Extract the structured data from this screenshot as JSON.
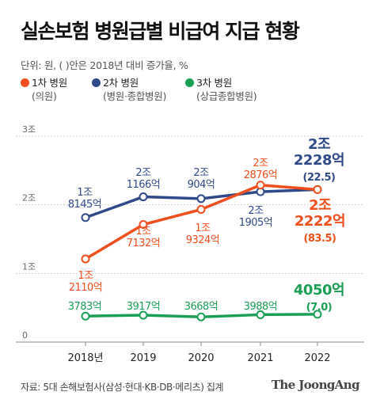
{
  "title": "실손보험 병원급별 비급여 지급 현황",
  "unit_note": "단위: 원, ( )안은 2018년 대비 증가율, %",
  "source": "자료: 5대 손해보험사(삼성·현대·KB·DB·메리츠) 집계",
  "brand": "The JoongAng",
  "chart_data": {
    "type": "line",
    "title": "실손보험 병원급별 비급여 지급 현황",
    "x": [
      "2018년",
      "2019",
      "2020",
      "2021",
      "2022"
    ],
    "y_ticks": [
      {
        "value": 0,
        "label": "0"
      },
      {
        "value": 1,
        "label": "1조"
      },
      {
        "value": 2,
        "label": "2조"
      },
      {
        "value": 3,
        "label": "3조"
      }
    ],
    "ylim": [
      0,
      3
    ],
    "grid": true,
    "legend_position": "top-left",
    "series": [
      {
        "name": "1차 병원",
        "sublabel": "(의원)",
        "color": "#f04e1c",
        "values": [
          1.211,
          1.7132,
          1.9324,
          2.2876,
          2.2222
        ],
        "labels": [
          [
            "1조",
            "2110억"
          ],
          [
            "1조",
            "7132억"
          ],
          [
            "1조",
            "9324억"
          ],
          [
            "2조",
            "2876억"
          ],
          [
            "2조",
            "2222억",
            "(83.5)"
          ]
        ]
      },
      {
        "name": "2차 병원",
        "sublabel": "(병원·종합병원)",
        "color": "#2f4a8a",
        "values": [
          1.8145,
          2.1166,
          2.0904,
          2.1905,
          2.2228
        ],
        "labels": [
          [
            "1조",
            "8145억"
          ],
          [
            "2조",
            "1166억"
          ],
          [
            "2조",
            "904억"
          ],
          [
            "2조",
            "1905억"
          ],
          [
            "2조",
            "2228억",
            "(22.5)"
          ]
        ]
      },
      {
        "name": "3차 병원",
        "sublabel": "(상급종합병원)",
        "color": "#1aa055",
        "values": [
          0.3783,
          0.3917,
          0.3668,
          0.3988,
          0.405
        ],
        "labels": [
          [
            "3783억"
          ],
          [
            "3917억"
          ],
          [
            "3668억"
          ],
          [
            "3988억"
          ],
          [
            "4050억",
            "(7.0)"
          ]
        ]
      }
    ]
  }
}
